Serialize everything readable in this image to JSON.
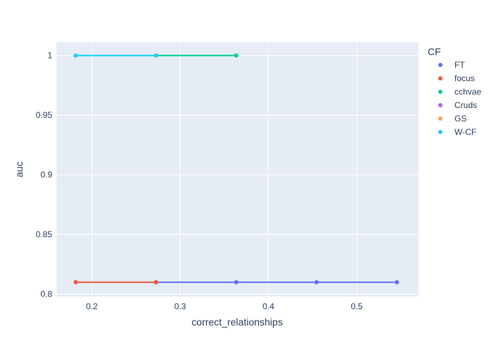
{
  "chart_data": {
    "type": "line",
    "xlabel": "correct_relationships",
    "ylabel": "auc",
    "xlim": [
      0.16,
      0.57
    ],
    "ylim": [
      0.798,
      1.011
    ],
    "xticks": [
      0.2,
      0.3,
      0.4,
      0.5
    ],
    "yticks": [
      0.8,
      0.85,
      0.9,
      0.95,
      1
    ],
    "xtick_labels": [
      "0.2",
      "0.3",
      "0.4",
      "0.5"
    ],
    "ytick_labels": [
      "0.8",
      "0.85",
      "0.9",
      "0.95",
      "1"
    ],
    "grid": true,
    "legend": {
      "title": "CF",
      "placement": "right"
    },
    "series": [
      {
        "name": "FT",
        "color": "#636efa",
        "mode": "lines+markers",
        "x": [
          0.2727,
          0.3636,
          0.4545,
          0.5455
        ],
        "y": [
          0.81,
          0.81,
          0.81,
          0.81
        ]
      },
      {
        "name": "focus",
        "color": "#EF553B",
        "mode": "lines+markers",
        "x": [
          0.1818,
          0.2727
        ],
        "y": [
          0.81,
          0.81
        ]
      },
      {
        "name": "cchvae",
        "color": "#00cc96",
        "mode": "lines+markers",
        "x": [
          0.2727,
          0.3636
        ],
        "y": [
          1.0,
          1.0
        ]
      },
      {
        "name": "Cruds",
        "color": "#ab63fa",
        "mode": "lines+markers",
        "x": [],
        "y": []
      },
      {
        "name": "GS",
        "color": "#FFA15A",
        "mode": "lines+markers",
        "x": [],
        "y": []
      },
      {
        "name": "W-CF",
        "color": "#19d3f3",
        "mode": "lines+markers",
        "x": [
          0.1818,
          0.2727
        ],
        "y": [
          1.0,
          1.0
        ]
      }
    ]
  }
}
